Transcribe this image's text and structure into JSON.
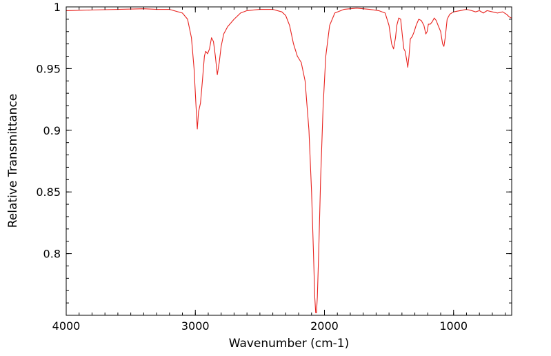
{
  "chart_data": {
    "type": "line",
    "title": "",
    "xlabel": "Wavenumber (cm-1)",
    "ylabel": "Relative Transmittance",
    "xlim": [
      4000,
      550
    ],
    "ylim": [
      0.75,
      1.0
    ],
    "x_reversed": true,
    "grid": false,
    "x_ticks": [
      4000,
      3000,
      2000,
      1000
    ],
    "x_tick_labels": [
      "4000",
      "3000",
      "2000",
      "1000"
    ],
    "y_ticks": [
      0.8,
      0.85,
      0.9,
      0.95,
      1.0
    ],
    "y_tick_labels": [
      "0.8",
      "0.85",
      "0.9",
      "0.95",
      "1"
    ],
    "x_minor_step": 100,
    "y_minor_step": 0.01,
    "series": [
      {
        "color": "#e8221e",
        "points": [
          [
            4000,
            0.997
          ],
          [
            3800,
            0.9975
          ],
          [
            3600,
            0.998
          ],
          [
            3400,
            0.9985
          ],
          [
            3300,
            0.998
          ],
          [
            3200,
            0.998
          ],
          [
            3100,
            0.995
          ],
          [
            3060,
            0.99
          ],
          [
            3030,
            0.975
          ],
          [
            3010,
            0.95
          ],
          [
            2995,
            0.92
          ],
          [
            2985,
            0.901
          ],
          [
            2975,
            0.915
          ],
          [
            2960,
            0.922
          ],
          [
            2945,
            0.94
          ],
          [
            2930,
            0.96
          ],
          [
            2920,
            0.964
          ],
          [
            2905,
            0.962
          ],
          [
            2890,
            0.966
          ],
          [
            2875,
            0.975
          ],
          [
            2860,
            0.972
          ],
          [
            2845,
            0.96
          ],
          [
            2830,
            0.945
          ],
          [
            2815,
            0.955
          ],
          [
            2800,
            0.968
          ],
          [
            2780,
            0.978
          ],
          [
            2750,
            0.984
          ],
          [
            2700,
            0.99
          ],
          [
            2650,
            0.995
          ],
          [
            2600,
            0.997
          ],
          [
            2500,
            0.998
          ],
          [
            2400,
            0.998
          ],
          [
            2330,
            0.996
          ],
          [
            2300,
            0.993
          ],
          [
            2270,
            0.985
          ],
          [
            2240,
            0.97
          ],
          [
            2210,
            0.96
          ],
          [
            2180,
            0.955
          ],
          [
            2150,
            0.94
          ],
          [
            2120,
            0.9
          ],
          [
            2100,
            0.85
          ],
          [
            2085,
            0.8
          ],
          [
            2075,
            0.765
          ],
          [
            2068,
            0.752
          ],
          [
            2062,
            0.752
          ],
          [
            2055,
            0.765
          ],
          [
            2045,
            0.8
          ],
          [
            2030,
            0.86
          ],
          [
            2010,
            0.92
          ],
          [
            1990,
            0.96
          ],
          [
            1960,
            0.985
          ],
          [
            1920,
            0.995
          ],
          [
            1850,
            0.998
          ],
          [
            1750,
            0.999
          ],
          [
            1650,
            0.998
          ],
          [
            1580,
            0.997
          ],
          [
            1530,
            0.995
          ],
          [
            1500,
            0.985
          ],
          [
            1480,
            0.97
          ],
          [
            1465,
            0.966
          ],
          [
            1450,
            0.975
          ],
          [
            1440,
            0.985
          ],
          [
            1425,
            0.991
          ],
          [
            1410,
            0.99
          ],
          [
            1395,
            0.975
          ],
          [
            1385,
            0.966
          ],
          [
            1375,
            0.964
          ],
          [
            1365,
            0.958
          ],
          [
            1355,
            0.951
          ],
          [
            1345,
            0.96
          ],
          [
            1335,
            0.974
          ],
          [
            1320,
            0.976
          ],
          [
            1305,
            0.98
          ],
          [
            1290,
            0.985
          ],
          [
            1270,
            0.99
          ],
          [
            1250,
            0.989
          ],
          [
            1230,
            0.985
          ],
          [
            1215,
            0.978
          ],
          [
            1205,
            0.98
          ],
          [
            1195,
            0.986
          ],
          [
            1180,
            0.986
          ],
          [
            1165,
            0.988
          ],
          [
            1150,
            0.991
          ],
          [
            1135,
            0.989
          ],
          [
            1120,
            0.985
          ],
          [
            1100,
            0.98
          ],
          [
            1085,
            0.97
          ],
          [
            1075,
            0.968
          ],
          [
            1065,
            0.975
          ],
          [
            1050,
            0.99
          ],
          [
            1030,
            0.994
          ],
          [
            1000,
            0.996
          ],
          [
            950,
            0.997
          ],
          [
            900,
            0.998
          ],
          [
            860,
            0.997
          ],
          [
            830,
            0.996
          ],
          [
            800,
            0.997
          ],
          [
            770,
            0.995
          ],
          [
            740,
            0.997
          ],
          [
            700,
            0.996
          ],
          [
            660,
            0.995
          ],
          [
            620,
            0.996
          ],
          [
            590,
            0.994
          ],
          [
            570,
            0.992
          ],
          [
            553,
            0.991
          ]
        ]
      }
    ]
  }
}
